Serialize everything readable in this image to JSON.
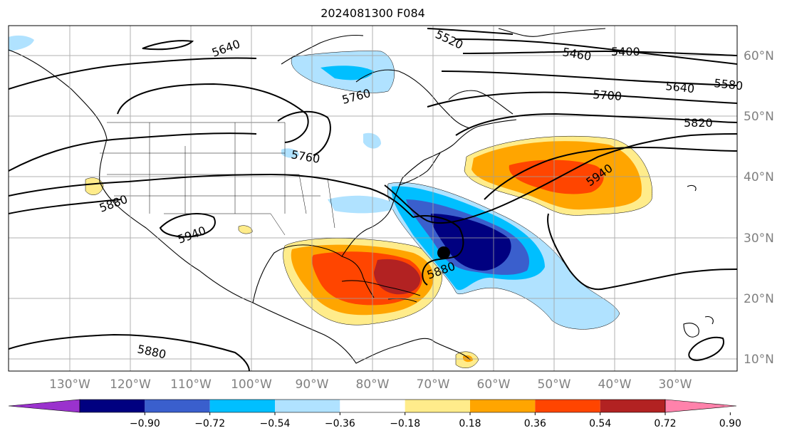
{
  "title": "2024081300 F084",
  "map": {
    "lon_ticks": [
      "130°W",
      "120°W",
      "110°W",
      "100°W",
      "90°W",
      "80°W",
      "70°W",
      "60°W",
      "50°W",
      "40°W",
      "30°W"
    ],
    "lat_ticks": [
      "60°N",
      "50°N",
      "40°N",
      "30°N",
      "20°N",
      "10°N"
    ],
    "contour_labels": [
      "5640",
      "5760",
      "5760",
      "5880",
      "5940",
      "5880",
      "5880",
      "5940",
      "5820",
      "5700",
      "5640",
      "5580",
      "5460",
      "5400",
      "5520"
    ],
    "marker": "storm-center"
  },
  "colorbar": {
    "ticks": [
      "−0.90",
      "−0.72",
      "−0.54",
      "−0.36",
      "−0.18",
      "0.18",
      "0.36",
      "0.54",
      "0.72",
      "0.90"
    ],
    "colors": [
      "#9a32cd",
      "#000080",
      "#3a5fcd",
      "#00bfff",
      "#b0e2ff",
      "#ffffff",
      "#ffec8b",
      "#ffa500",
      "#ff4500",
      "#b22222",
      "#ff82ab"
    ]
  }
}
